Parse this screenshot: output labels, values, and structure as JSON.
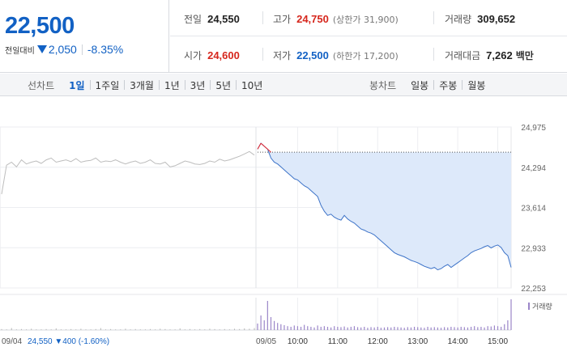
{
  "price_panel": {
    "current_price": "22,500",
    "change_label": "전일대비",
    "change_value": "2,050",
    "change_rate": "-8.35%",
    "direction": "down",
    "down_color": "#1261c4",
    "up_color": "#d6271d"
  },
  "stats": {
    "prev_close": {
      "label": "전일",
      "value": "24,550"
    },
    "high": {
      "label": "고가",
      "value": "24,750",
      "sub": "(상한가 31,900)"
    },
    "volume": {
      "label": "거래량",
      "value": "309,652"
    },
    "open": {
      "label": "시가",
      "value": "24,600"
    },
    "low": {
      "label": "저가",
      "value": "22,500",
      "sub": "(하한가 17,200)"
    },
    "amount": {
      "label": "거래대금",
      "value": "7,262",
      "unit": "백만"
    }
  },
  "toolbar": {
    "line_chart_title": "선차트",
    "line_periods": [
      {
        "label": "1일",
        "active": true
      },
      {
        "label": "1주일",
        "active": false
      },
      {
        "label": "3개월",
        "active": false
      },
      {
        "label": "1년",
        "active": false
      },
      {
        "label": "3년",
        "active": false
      },
      {
        "label": "5년",
        "active": false
      },
      {
        "label": "10년",
        "active": false
      }
    ],
    "candle_chart_title": "봉차트",
    "candle_periods": [
      {
        "label": "일봉"
      },
      {
        "label": "주봉"
      },
      {
        "label": "월봉"
      }
    ]
  },
  "chart_data": {
    "type": "line",
    "prev_day_label": "09/04",
    "prev_day_info": "24,550 ▼400 (-1.60%)",
    "day_label": "09/05",
    "x_ticks": [
      "10:00",
      "11:00",
      "12:00",
      "13:00",
      "14:00",
      "15:00"
    ],
    "y_ticks": [
      "24,975",
      "24,294",
      "23,614",
      "22,933",
      "22,253"
    ],
    "y_tick_values": [
      24975,
      24294,
      23614,
      22933,
      22253
    ],
    "ylim": [
      22253,
      24975
    ],
    "reference_price": 24550,
    "volume_legend": "거래량",
    "prev_day_series": {
      "color": "#bdbdbd",
      "values": [
        23840,
        24330,
        24380,
        24300,
        24420,
        24350,
        24380,
        24400,
        24360,
        24420,
        24450,
        24380,
        24400,
        24420,
        24390,
        24440,
        24380,
        24400,
        24410,
        24450,
        24380,
        24400,
        24390,
        24420,
        24380,
        24350,
        24380,
        24400,
        24360,
        24380,
        24420,
        24360,
        24350,
        24380,
        24300,
        24320,
        24360,
        24400,
        24380,
        24350,
        24340,
        24360,
        24400,
        24380,
        24430,
        24400,
        24420,
        24450,
        24480,
        24520,
        24560,
        24500
      ]
    },
    "today_series": {
      "color": "#3d73c8",
      "fill": "#dde9fa",
      "high_color": "#e8262b",
      "times": [
        "09:00",
        "09:05",
        "09:10",
        "09:15",
        "09:20",
        "09:25",
        "09:30",
        "09:35",
        "09:40",
        "09:45",
        "09:50",
        "09:55",
        "10:00",
        "10:05",
        "10:10",
        "10:15",
        "10:20",
        "10:25",
        "10:30",
        "10:35",
        "10:40",
        "10:45",
        "10:50",
        "10:55",
        "11:00",
        "11:05",
        "11:10",
        "11:15",
        "11:20",
        "11:25",
        "11:30",
        "11:35",
        "11:40",
        "11:45",
        "11:50",
        "11:55",
        "12:00",
        "12:05",
        "12:10",
        "12:15",
        "12:20",
        "12:25",
        "12:30",
        "12:35",
        "12:40",
        "12:45",
        "12:50",
        "12:55",
        "13:00",
        "13:05",
        "13:10",
        "13:15",
        "13:20",
        "13:25",
        "13:30",
        "13:35",
        "13:40",
        "13:45",
        "13:50",
        "13:55",
        "14:00",
        "14:05",
        "14:10",
        "14:15",
        "14:20",
        "14:25",
        "14:30",
        "14:35",
        "14:40",
        "14:45",
        "14:50",
        "14:55",
        "15:00",
        "15:05",
        "15:10",
        "15:15",
        "15:20"
      ],
      "values": [
        24600,
        24700,
        24650,
        24600,
        24450,
        24380,
        24350,
        24300,
        24250,
        24200,
        24150,
        24100,
        24080,
        24030,
        23980,
        23950,
        23900,
        23850,
        23800,
        23650,
        23550,
        23480,
        23500,
        23450,
        23420,
        23400,
        23480,
        23420,
        23380,
        23350,
        23300,
        23250,
        23230,
        23200,
        23180,
        23150,
        23100,
        23050,
        23000,
        22950,
        22900,
        22850,
        22820,
        22800,
        22780,
        22750,
        22720,
        22700,
        22680,
        22650,
        22620,
        22600,
        22580,
        22600,
        22560,
        22580,
        22620,
        22650,
        22600,
        22640,
        22680,
        22720,
        22760,
        22800,
        22850,
        22880,
        22900,
        22920,
        22950,
        22970,
        22930,
        22960,
        22980,
        22940,
        22850,
        22800,
        22600
      ]
    },
    "prev_day_volume": [
      3,
      2,
      6,
      2,
      3,
      2,
      4,
      2,
      2,
      3,
      2,
      5,
      2,
      2,
      3,
      2,
      4,
      2,
      2,
      3,
      6,
      2,
      3,
      2,
      2,
      4,
      2,
      3,
      2,
      2,
      3,
      2,
      4,
      3,
      2,
      2,
      5,
      2,
      3,
      2,
      3,
      2,
      4,
      3,
      2,
      3,
      2,
      4,
      3,
      5,
      4,
      6
    ],
    "today_volume": [
      20,
      45,
      30,
      90,
      40,
      28,
      22,
      18,
      15,
      12,
      10,
      14,
      12,
      10,
      16,
      12,
      10,
      8,
      14,
      10,
      12,
      10,
      8,
      12,
      10,
      9,
      11,
      8,
      10,
      12,
      9,
      8,
      10,
      7,
      9,
      8,
      10,
      7,
      8,
      9,
      8,
      10,
      9,
      8,
      7,
      9,
      8,
      10,
      9,
      8,
      7,
      10,
      8,
      9,
      8,
      7,
      9,
      8,
      10,
      9,
      8,
      10,
      9,
      8,
      10,
      12,
      9,
      10,
      8,
      12,
      11,
      14,
      12,
      10,
      18,
      30,
      95
    ],
    "prev_volume_color": "#b5b5b5",
    "today_volume_color": "#9b86c9"
  }
}
